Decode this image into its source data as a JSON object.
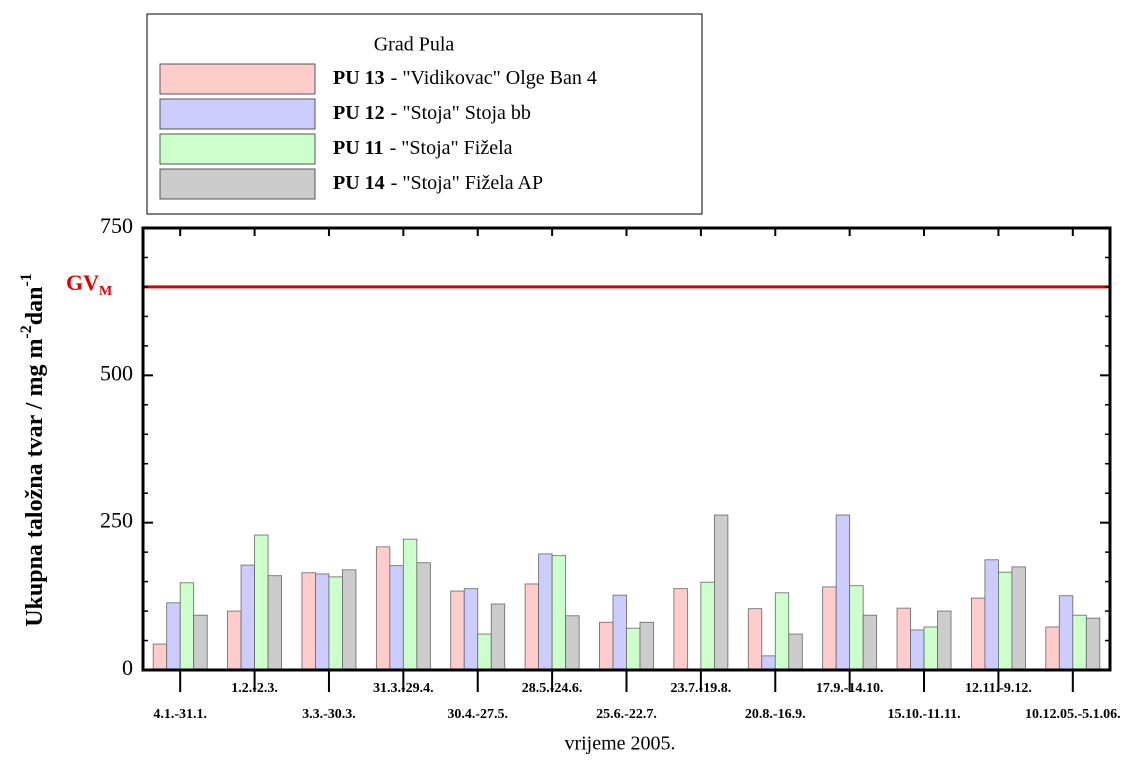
{
  "chart_data": {
    "type": "bar",
    "legend_title": "Grad Pula",
    "y_label_parts": [
      "Ukupna taložna tvar / mg m",
      "-2",
      "dan",
      "-1"
    ],
    "x_label": "vrijeme 2005.",
    "categories": [
      "4.1.-31.1.",
      "1.2.-2.3.",
      "3.3.-30.3.",
      "31.3.-29.4.",
      "30.4.-27.5.",
      "28.5.-24.6.",
      "25.6.-22.7.",
      "23.7.-19.8.",
      "20.8.-16.9.",
      "17.9.-14.10.",
      "15.10.-11.11.",
      "12.11.-9.12.",
      "10.12.05.-5.1.06."
    ],
    "series": [
      {
        "name": "PU 13",
        "description": "- \"Vidikovac\" Olge Ban 4",
        "color": "#ffcccc",
        "values": [
          44,
          100,
          165,
          209,
          134,
          146,
          81,
          138,
          104,
          141,
          105,
          122,
          73
        ]
      },
      {
        "name": "PU 12",
        "description": "- \"Stoja\" Stoja bb",
        "color": "#ccccff",
        "values": [
          114,
          178,
          163,
          177,
          138,
          197,
          127,
          null,
          24,
          263,
          68,
          187,
          126
        ]
      },
      {
        "name": "PU 11",
        "description": "- \"Stoja\" Fižela",
        "color": "#ccffcc",
        "values": [
          148,
          229,
          158,
          222,
          61,
          194,
          71,
          149,
          131,
          143,
          73,
          166,
          93
        ]
      },
      {
        "name": "PU 14",
        "description": "- \"Stoja\" Fižela AP",
        "color": "#cccccc",
        "values": [
          93,
          160,
          170,
          182,
          112,
          92,
          81,
          263,
          61,
          93,
          100,
          175,
          88
        ]
      }
    ],
    "reference_line": {
      "value": 650,
      "label": "GV",
      "label_sub": "M",
      "color": "#e00000"
    },
    "ylim": [
      0,
      750
    ],
    "yticks": [
      0,
      250,
      500,
      750
    ],
    "minor_yticks": [
      50,
      100,
      150,
      200,
      300,
      350,
      400,
      450,
      550,
      600,
      650,
      700
    ]
  }
}
